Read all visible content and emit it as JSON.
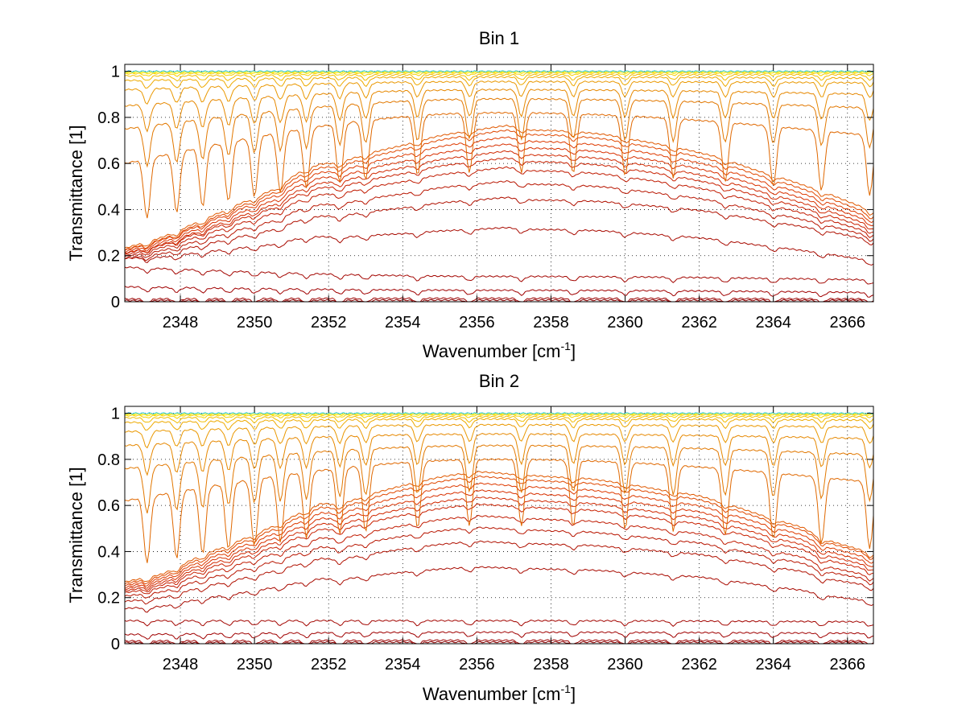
{
  "chart_data": [
    {
      "type": "line",
      "title": "Bin 1",
      "xlabel_main": "Wavenumber [cm",
      "xlabel_sup": "-1",
      "xlabel_end": "]",
      "ylabel": "Transmittance [1]",
      "xlim": [
        2346.5,
        2366.7
      ],
      "ylim": [
        0,
        1.03
      ],
      "xticks": [
        2348,
        2350,
        2352,
        2354,
        2356,
        2358,
        2360,
        2362,
        2364,
        2366
      ],
      "yticks": [
        0,
        0.2,
        0.4,
        0.6,
        0.8,
        1
      ],
      "grid": true,
      "envelope_x": [
        2346.5,
        2347.5,
        2348.5,
        2349.5,
        2350.5,
        2351.3,
        2351.8,
        2352.3,
        2353,
        2354,
        2355,
        2356,
        2356.8,
        2357.5,
        2358.5,
        2359.5,
        2360.5,
        2361.5,
        2362.5,
        2363.5,
        2364,
        2364.5,
        2365.5,
        2366.7
      ],
      "envelope_y": [
        0.3,
        0.29,
        0.37,
        0.44,
        0.5,
        0.64,
        0.65,
        0.61,
        0.64,
        0.66,
        0.71,
        0.74,
        0.78,
        0.74,
        0.75,
        0.75,
        0.73,
        0.72,
        0.7,
        0.64,
        0.62,
        0.6,
        0.54,
        0.43
      ],
      "absorption_lines": [
        2347.1,
        2347.9,
        2348.6,
        2349.3,
        2350.0,
        2350.7,
        2351.4,
        2352.3,
        2353.0,
        2354.4,
        2355.8,
        2357.2,
        2358.6,
        2360.0,
        2361.3,
        2362.7,
        2364.0,
        2365.3,
        2366.6
      ],
      "series": [
        {
          "values": [
            0.005,
            0.007,
            0.006
          ],
          "color": "#8b0000"
        },
        {
          "values": [
            0.012,
            0.015,
            0.012
          ],
          "color": "#9a0000"
        },
        {
          "values": [
            0.065,
            0.05,
            0.04
          ],
          "color": "#a00000"
        },
        {
          "values": [
            0.15,
            0.11,
            0.095
          ],
          "color": "#a30500"
        },
        {
          "values": [
            0.26,
            0.32,
            0.22
          ],
          "color": "#a80a00"
        },
        {
          "values": [
            0.26,
            0.45,
            0.33
          ],
          "color": "#b01000"
        },
        {
          "values": [
            0.27,
            0.52,
            0.35
          ],
          "color": "#b81500"
        },
        {
          "values": [
            0.28,
            0.58,
            0.37
          ],
          "color": "#c01a00"
        },
        {
          "values": [
            0.29,
            0.62,
            0.39
          ],
          "color": "#c82000"
        },
        {
          "values": [
            0.29,
            0.65,
            0.41
          ],
          "color": "#d02800"
        },
        {
          "values": [
            0.3,
            0.68,
            0.43
          ],
          "color": "#d83000"
        },
        {
          "values": [
            0.31,
            0.71,
            0.45
          ],
          "color": "#de3a00"
        },
        {
          "values": [
            0.31,
            0.74,
            0.47
          ],
          "color": "#e04800"
        },
        {
          "values": [
            0.32,
            0.76,
            0.49
          ],
          "color": "#e05800"
        },
        {
          "values": [
            0.6,
            0.82,
            0.72
          ],
          "color": "#e06800"
        },
        {
          "values": [
            0.75,
            0.88,
            0.84
          ],
          "color": "#e27800"
        },
        {
          "values": [
            0.85,
            0.92,
            0.9
          ],
          "color": "#e68800"
        },
        {
          "values": [
            0.92,
            0.955,
            0.95
          ],
          "color": "#ea9800"
        },
        {
          "values": [
            0.96,
            0.975,
            0.97
          ],
          "color": "#eeaa00"
        },
        {
          "values": [
            0.98,
            0.985,
            0.985
          ],
          "color": "#f2bc00"
        },
        {
          "values": [
            0.99,
            0.993,
            0.993
          ],
          "color": "#f6d000"
        },
        {
          "values": [
            0.995,
            0.997,
            0.997
          ],
          "color": "#f8e400"
        },
        {
          "values": [
            0.998,
            0.999,
            0.999
          ],
          "color": "#eeee30"
        },
        {
          "values": [
            1.0,
            1.0,
            1.0
          ],
          "color": "#30ccee"
        }
      ]
    },
    {
      "type": "line",
      "title": "Bin 2",
      "xlabel_main": "Wavenumber [cm",
      "xlabel_sup": "-1",
      "xlabel_end": "]",
      "ylabel": "Transmittance [1]",
      "xlim": [
        2346.5,
        2366.7
      ],
      "ylim": [
        0,
        1.03
      ],
      "xticks": [
        2348,
        2350,
        2352,
        2354,
        2356,
        2358,
        2360,
        2362,
        2364,
        2366
      ],
      "yticks": [
        0,
        0.2,
        0.4,
        0.6,
        0.8,
        1
      ],
      "grid": true,
      "envelope_x": [
        2346.5,
        2347.5,
        2348.5,
        2349.5,
        2350.5,
        2351.3,
        2351.8,
        2352.3,
        2353,
        2354,
        2355,
        2356,
        2357,
        2358,
        2359,
        2360,
        2361,
        2362,
        2363,
        2364,
        2364.8,
        2365.3,
        2366.7
      ],
      "envelope_y": [
        0.35,
        0.3,
        0.42,
        0.47,
        0.54,
        0.62,
        0.66,
        0.6,
        0.64,
        0.68,
        0.72,
        0.75,
        0.72,
        0.71,
        0.72,
        0.71,
        0.7,
        0.71,
        0.67,
        0.62,
        0.6,
        0.51,
        0.46
      ],
      "absorption_lines": [
        2347.1,
        2347.9,
        2348.6,
        2349.3,
        2350.0,
        2350.7,
        2351.4,
        2352.3,
        2353.0,
        2354.4,
        2355.8,
        2357.2,
        2358.6,
        2360.0,
        2361.3,
        2362.7,
        2364.0,
        2365.3,
        2366.6
      ],
      "series": [
        {
          "values": [
            0.005,
            0.007,
            0.006
          ],
          "color": "#8b0000"
        },
        {
          "values": [
            0.012,
            0.015,
            0.012
          ],
          "color": "#9a0000"
        },
        {
          "values": [
            0.04,
            0.05,
            0.045
          ],
          "color": "#a00000"
        },
        {
          "values": [
            0.1,
            0.1,
            0.095
          ],
          "color": "#a30500"
        },
        {
          "values": [
            0.2,
            0.33,
            0.22
          ],
          "color": "#a80a00"
        },
        {
          "values": [
            0.24,
            0.44,
            0.3
          ],
          "color": "#b01000"
        },
        {
          "values": [
            0.27,
            0.5,
            0.33
          ],
          "color": "#b81500"
        },
        {
          "values": [
            0.29,
            0.55,
            0.35
          ],
          "color": "#c01a00"
        },
        {
          "values": [
            0.3,
            0.6,
            0.38
          ],
          "color": "#c82000"
        },
        {
          "values": [
            0.31,
            0.63,
            0.4
          ],
          "color": "#d02800"
        },
        {
          "values": [
            0.32,
            0.66,
            0.42
          ],
          "color": "#d83000"
        },
        {
          "values": [
            0.33,
            0.69,
            0.44
          ],
          "color": "#de3a00"
        },
        {
          "values": [
            0.34,
            0.72,
            0.46
          ],
          "color": "#e04800"
        },
        {
          "values": [
            0.35,
            0.74,
            0.47
          ],
          "color": "#e05800"
        },
        {
          "values": [
            0.62,
            0.8,
            0.7
          ],
          "color": "#e06800"
        },
        {
          "values": [
            0.76,
            0.86,
            0.82
          ],
          "color": "#e27800"
        },
        {
          "values": [
            0.86,
            0.91,
            0.89
          ],
          "color": "#e68800"
        },
        {
          "values": [
            0.92,
            0.95,
            0.94
          ],
          "color": "#ea9800"
        },
        {
          "values": [
            0.96,
            0.975,
            0.97
          ],
          "color": "#eeaa00"
        },
        {
          "values": [
            0.98,
            0.985,
            0.985
          ],
          "color": "#f2bc00"
        },
        {
          "values": [
            0.99,
            0.993,
            0.993
          ],
          "color": "#f6d000"
        },
        {
          "values": [
            0.995,
            0.997,
            0.997
          ],
          "color": "#f8e400"
        },
        {
          "values": [
            0.998,
            0.999,
            0.999
          ],
          "color": "#eeee30"
        },
        {
          "values": [
            1.0,
            1.0,
            1.0
          ],
          "color": "#30ccee"
        }
      ]
    }
  ]
}
